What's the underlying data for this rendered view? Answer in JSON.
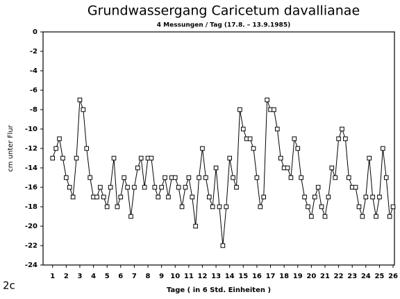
{
  "chart_data": {
    "type": "line",
    "title": "Grundwassergang Caricetum davallianae",
    "subtitle": "4 Messungen / Tag (17.8. – 13.9.1985)",
    "x_label": "Tage ( in 6 Std. Einheiten )",
    "y_label": "cm unter Flur",
    "annotation": "2c",
    "color": "#000000",
    "marker": "square",
    "xlim": [
      0.3,
      26.1
    ],
    "ylim": [
      -24,
      0
    ],
    "xticks": [
      1,
      2,
      3,
      4,
      5,
      6,
      7,
      8,
      9,
      10,
      11,
      12,
      13,
      14,
      15,
      16,
      17,
      18,
      19,
      20,
      21,
      22,
      23,
      24,
      25,
      26
    ],
    "yticks": [
      0,
      -2,
      -4,
      -6,
      -8,
      -10,
      -12,
      -14,
      -16,
      -18,
      -20,
      -22,
      -24
    ],
    "x": [
      1,
      1.25,
      1.5,
      1.75,
      2,
      2.25,
      2.5,
      2.75,
      3,
      3.25,
      3.5,
      3.75,
      4,
      4.25,
      4.5,
      4.75,
      5,
      5.25,
      5.5,
      5.75,
      6,
      6.25,
      6.5,
      6.75,
      7,
      7.25,
      7.5,
      7.75,
      8,
      8.25,
      8.5,
      8.75,
      9,
      9.25,
      9.5,
      9.75,
      10,
      10.25,
      10.5,
      10.75,
      11,
      11.25,
      11.5,
      11.75,
      12,
      12.25,
      12.5,
      12.75,
      13,
      13.25,
      13.5,
      13.75,
      14,
      14.25,
      14.5,
      14.75,
      15,
      15.25,
      15.5,
      15.75,
      16,
      16.25,
      16.5,
      16.75,
      17,
      17.25,
      17.5,
      17.75,
      18,
      18.25,
      18.5,
      18.75,
      19,
      19.25,
      19.5,
      19.75,
      20,
      20.25,
      20.5,
      20.75,
      21,
      21.25,
      21.5,
      21.75,
      22,
      22.25,
      22.5,
      22.75,
      23,
      23.25,
      23.5,
      23.75,
      24,
      24.25,
      24.5,
      24.75,
      25,
      25.25,
      25.5,
      25.75,
      26
    ],
    "values": [
      -13,
      -12,
      -11,
      -13,
      -15,
      -16,
      -17,
      -13,
      -7,
      -8,
      -12,
      -15,
      -17,
      -17,
      -16,
      -17,
      -18,
      -16,
      -13,
      -18,
      -17,
      -15,
      -16,
      -19,
      -16,
      -14,
      -13,
      -16,
      -13,
      -13,
      -16,
      -17,
      -16,
      -15,
      -17,
      -15,
      -15,
      -16,
      -18,
      -16,
      -15,
      -17,
      -20,
      -15,
      -12,
      -15,
      -17,
      -18,
      -14,
      -18,
      -22,
      -18,
      -13,
      -15,
      -16,
      -8,
      -10,
      -11,
      -11,
      -12,
      -15,
      -18,
      -17,
      -7,
      -8,
      -8,
      -10,
      -13,
      -14,
      -14,
      -15,
      -11,
      -12,
      -15,
      -17,
      -18,
      -19,
      -17,
      -16,
      -18,
      -19,
      -17,
      -14,
      -15,
      -11,
      -10,
      -11,
      -15,
      -16,
      -16,
      -18,
      -19,
      -17,
      -13,
      -17,
      -19,
      -17,
      -12,
      -15,
      -19,
      -18
    ]
  }
}
